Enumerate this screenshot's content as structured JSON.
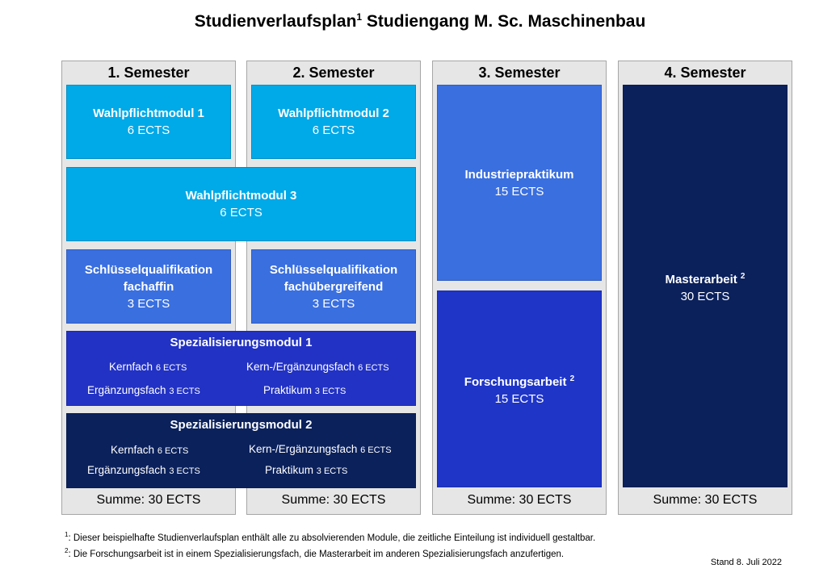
{
  "title": {
    "main": "Studienverlaufsplan",
    "sup": "1",
    "rest": " Studiengang M. Sc. Maschinenbau"
  },
  "columns": [
    {
      "head": "1. Semester",
      "sum": "Summe:  30 ECTS"
    },
    {
      "head": "2. Semester",
      "sum": "Summe:  30 ECTS"
    },
    {
      "head": "3. Semester",
      "sum": "Summe:  30 ECTS"
    },
    {
      "head": "4. Semester",
      "sum": "Summe:  30 ECTS"
    }
  ],
  "modules": {
    "wpm1": {
      "title": "Wahlpflichtmodul  1",
      "ects": "6 ECTS"
    },
    "wpm2": {
      "title": "Wahlpflichtmodul  2",
      "ects": "6 ECTS"
    },
    "wpm3": {
      "title": "Wahlpflichtmodul  3",
      "ects": "6 ECTS"
    },
    "sq1": {
      "title1": "Schlüsselqualifikation",
      "title2": "fachaffin",
      "ects": "3 ECTS"
    },
    "sq2": {
      "title1": "Schlüsselqualifikation",
      "title2": "fachübergreifend",
      "ects": "3 ECTS"
    },
    "spec1": {
      "title": "Spezialisierungsmodul  1",
      "kern": "Kernfach",
      "kern_ects": "6 ECTS",
      "kernerg": "Kern-/Ergänzungsfach",
      "kernerg_ects": "6 ECTS",
      "erg": "Ergänzungsfach",
      "erg_ects": "3 ECTS",
      "prak": "Praktikum",
      "prak_ects": "3 ECTS"
    },
    "spec2": {
      "title": "Spezialisierungsmodul  2",
      "kern": "Kernfach",
      "kern_ects": "6 ECTS",
      "kernerg": "Kern-/Ergänzungsfach",
      "kernerg_ects": "6 ECTS",
      "erg": "Ergänzungsfach",
      "erg_ects": "3 ECTS",
      "prak": "Praktikum",
      "prak_ects": "3 ECTS"
    },
    "industrie": {
      "title": "Industriepraktikum",
      "ects": "15 ECTS"
    },
    "forschung": {
      "title": "Forschungsarbeit",
      "sup": "2",
      "ects": "15 ECTS"
    },
    "master": {
      "title": "Masterarbeit",
      "sup": "2",
      "ects": "30 ECTS"
    }
  },
  "footnotes": [
    {
      "mark": "1",
      "text": ": Dieser beispielhafte Studienverlaufsplan enthält alle zu absolvierenden Module, die zeitliche Einteilung ist individuell gestaltbar."
    },
    {
      "mark": "2",
      "text": ": Die Forschungsarbeit ist in einem Spezialisierungsfach, die Masterarbeit  im anderen Spezialisierungsfach anzufertigen."
    }
  ],
  "stand": "Stand 8. Juli 2022",
  "colors": {
    "light": "#00a9e8",
    "mid": "#3a6fe0",
    "blue": "#1f35c8",
    "navy": "#0b215c",
    "column_bg": "#e6e6e6"
  }
}
